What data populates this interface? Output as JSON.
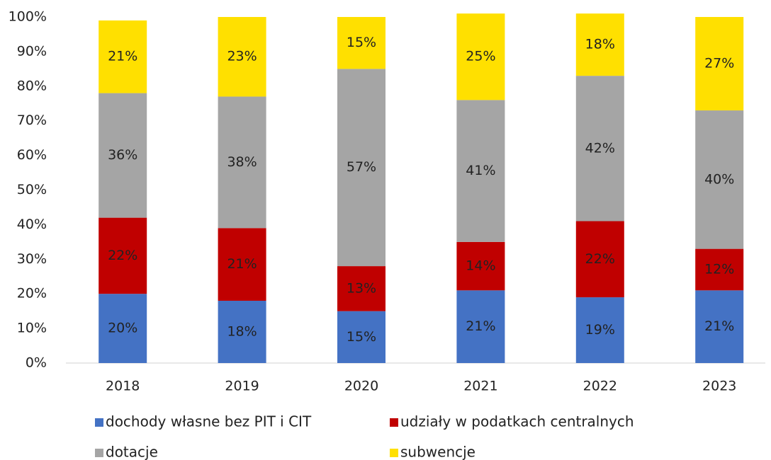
{
  "chart_data": {
    "type": "stacked_bar",
    "categories": [
      "2018",
      "2019",
      "2020",
      "2021",
      "2022",
      "2023"
    ],
    "series": [
      {
        "name": "dochody własne bez PIT i CIT",
        "color": "#4472c4",
        "values": [
          20,
          18,
          15,
          21,
          19,
          21
        ],
        "value_labels": [
          "20%",
          "18%",
          "15%",
          "21%",
          "19%",
          "21%"
        ]
      },
      {
        "name": "udziały w podatkach centralnych",
        "color": "#c00000",
        "values": [
          22,
          21,
          13,
          14,
          22,
          12
        ],
        "value_labels": [
          "22%",
          "21%",
          "13%",
          "14%",
          "22%",
          "12%"
        ]
      },
      {
        "name": "dotacje",
        "color": "#a5a5a5",
        "values": [
          36,
          38,
          57,
          41,
          42,
          40
        ],
        "value_labels": [
          "36%",
          "38%",
          "57%",
          "41%",
          "42%",
          "40%"
        ]
      },
      {
        "name": "subwencje",
        "color": "#ffe000",
        "values": [
          21,
          23,
          15,
          25,
          18,
          27
        ],
        "value_labels": [
          "21%",
          "23%",
          "15%",
          "25%",
          "18%",
          "27%"
        ]
      }
    ],
    "ylim": [
      0,
      100
    ],
    "yticks": [
      {
        "value": 0,
        "label": "0%"
      },
      {
        "value": 10,
        "label": "10%"
      },
      {
        "value": 20,
        "label": "20%"
      },
      {
        "value": 30,
        "label": "30%"
      },
      {
        "value": 40,
        "label": "40%"
      },
      {
        "value": 50,
        "label": "50%"
      },
      {
        "value": 60,
        "label": "60%"
      },
      {
        "value": 70,
        "label": "70%"
      },
      {
        "value": 80,
        "label": "80%"
      },
      {
        "value": 90,
        "label": "90%"
      },
      {
        "value": 100,
        "label": "100%"
      }
    ],
    "legend": "bottom"
  }
}
